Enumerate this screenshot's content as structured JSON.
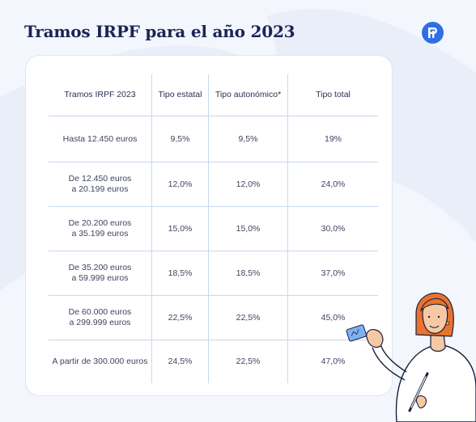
{
  "title": "Tramos IRPF para el año 2023",
  "brand": {
    "logo_letter": "P",
    "color": "#2f6fe6"
  },
  "colors": {
    "title": "#1a2456",
    "grid": "#c8d6ee",
    "text": "#3e4460",
    "background": "#f3f6fc"
  },
  "table": {
    "headers": [
      "Tramos IRPF 2023",
      "Tipo estatal",
      "Tipo autonómico*",
      "Tipo total"
    ],
    "rows": [
      {
        "tramo_1": "Hasta 12.450 euros",
        "tramo_2": "",
        "estatal": "9,5%",
        "autonomico": "9,5%",
        "total": "19%"
      },
      {
        "tramo_1": "De 12.450 euros",
        "tramo_2": "a 20.199 euros",
        "estatal": "12,0%",
        "autonomico": "12,0%",
        "total": "24,0%"
      },
      {
        "tramo_1": "De 20.200 euros",
        "tramo_2": "a 35.199 euros",
        "estatal": "15,0%",
        "autonomico": "15,0%",
        "total": "30,0%"
      },
      {
        "tramo_1": "De 35.200 euros",
        "tramo_2": "a 59.999 euros",
        "estatal": "18,5%",
        "autonomico": "18,5%",
        "total": "37,0%"
      },
      {
        "tramo_1": "De 60.000 euros",
        "tramo_2": "a 299.999 euros",
        "estatal": "22,5%",
        "autonomico": "22,5%",
        "total": "45,0%"
      },
      {
        "tramo_1": "A partir de 300.000 euros",
        "tramo_2": "",
        "estatal": "24,5%",
        "autonomico": "22,5%",
        "total": "47,0%"
      }
    ]
  }
}
